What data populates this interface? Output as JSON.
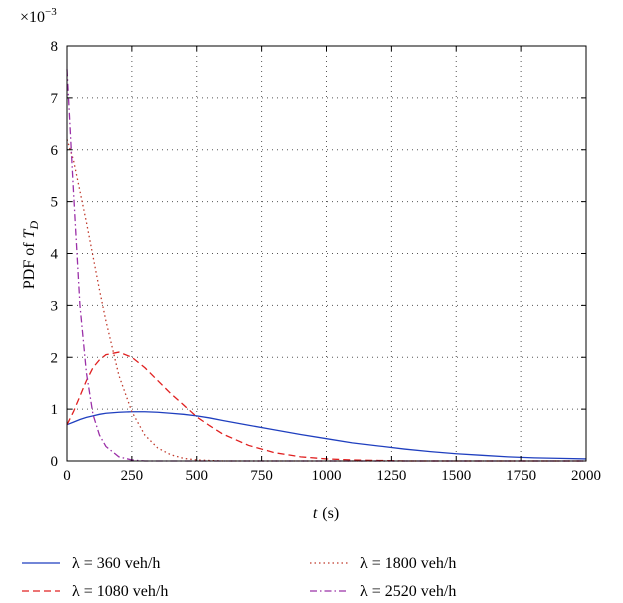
{
  "chart_data": {
    "type": "line",
    "xlabel_var": "t",
    "xlabel_unit": "(s)",
    "ylabel_main": "PDF of ",
    "ylabel_var": "T",
    "ylabel_sub": "D",
    "y_multiplier_base": "×10",
    "y_multiplier_exp": "−3",
    "xlim": [
      0,
      2000
    ],
    "ylim": [
      0,
      8
    ],
    "xticks": [
      0,
      250,
      500,
      750,
      1000,
      1250,
      1500,
      1750,
      2000
    ],
    "yticks": [
      0,
      1,
      2,
      3,
      4,
      5,
      6,
      7,
      8
    ],
    "grid": true,
    "legend_position": "bottom",
    "x": [
      0,
      25,
      50,
      75,
      100,
      125,
      150,
      200,
      250,
      300,
      350,
      400,
      450,
      500,
      550,
      600,
      700,
      800,
      900,
      1000,
      1100,
      1200,
      1300,
      1400,
      1500,
      1600,
      1700,
      1800,
      1900,
      2000
    ],
    "series": [
      {
        "name": "λ = 360 veh/h",
        "color": "#1f3fbf",
        "dash": "solid",
        "values": [
          0.7,
          0.75,
          0.8,
          0.84,
          0.87,
          0.9,
          0.92,
          0.94,
          0.95,
          0.95,
          0.94,
          0.92,
          0.9,
          0.87,
          0.83,
          0.78,
          0.69,
          0.6,
          0.51,
          0.43,
          0.35,
          0.29,
          0.23,
          0.18,
          0.14,
          0.11,
          0.08,
          0.06,
          0.05,
          0.04
        ]
      },
      {
        "name": "λ = 1080 veh/h",
        "color": "#e02020",
        "dash": "dashed",
        "values": [
          0.7,
          0.95,
          1.25,
          1.55,
          1.8,
          1.95,
          2.05,
          2.1,
          2.0,
          1.8,
          1.55,
          1.3,
          1.08,
          0.85,
          0.68,
          0.52,
          0.3,
          0.16,
          0.08,
          0.04,
          0.02,
          0.01,
          0.0,
          0.0,
          0.0,
          0.0,
          0.0,
          0.0,
          0.0,
          0.0
        ]
      },
      {
        "name": "λ = 1800 veh/h",
        "color": "#c0392b",
        "dash": "dotted",
        "values": [
          6.2,
          5.8,
          5.2,
          4.6,
          3.95,
          3.3,
          2.7,
          1.65,
          0.95,
          0.5,
          0.25,
          0.12,
          0.05,
          0.02,
          0.01,
          0.0,
          0.0,
          0.0,
          0.0,
          0.0,
          0.0,
          0.0,
          0.0,
          0.0,
          0.0,
          0.0,
          0.0,
          0.0,
          0.0,
          0.0
        ]
      },
      {
        "name": "λ = 2520 veh/h",
        "color": "#9b30a8",
        "dash": "dashdot",
        "values": [
          7.55,
          5.2,
          3.0,
          1.7,
          0.9,
          0.5,
          0.28,
          0.08,
          0.02,
          0.0,
          0.0,
          0.0,
          0.0,
          0.0,
          0.0,
          0.0,
          0.0,
          0.0,
          0.0,
          0.0,
          0.0,
          0.0,
          0.0,
          0.0,
          0.0,
          0.0,
          0.0,
          0.0,
          0.0,
          0.0
        ]
      }
    ]
  }
}
